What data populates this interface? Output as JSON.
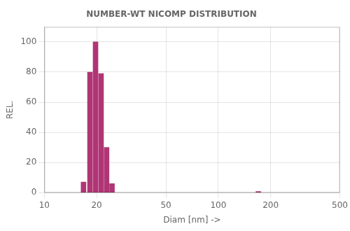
{
  "chart_data": {
    "type": "bar",
    "title": "NUMBER-WT NICOMP DISTRIBUTION",
    "x_label": "Diam [nm] ->",
    "y_label": "REL.",
    "x": [
      16.8,
      18.3,
      19.7,
      21.2,
      22.8,
      24.5,
      170.0
    ],
    "values": [
      7,
      80,
      100,
      79,
      30,
      6,
      0.8
    ],
    "color": "#b03575",
    "log": "x",
    "xlim": [
      10,
      500
    ],
    "xticks": [
      10,
      20,
      50,
      100,
      200,
      500
    ],
    "ylim": [
      0,
      110
    ],
    "yticks": [
      0,
      20,
      40,
      60,
      80,
      100
    ],
    "grid": true
  }
}
